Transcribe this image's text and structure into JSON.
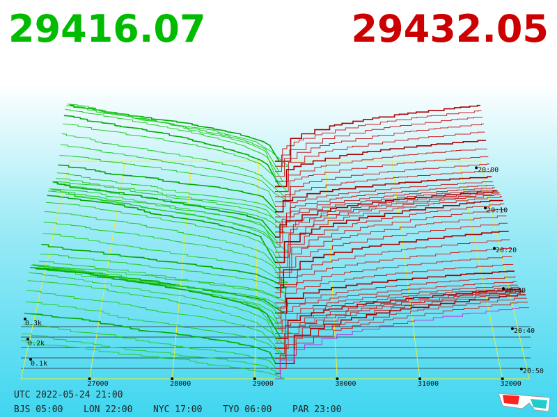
{
  "bid_price": "29416.07",
  "ask_price": "29432.05",
  "price_axis": [
    "27000",
    "28000",
    "29000",
    "30000",
    "31000",
    "32000"
  ],
  "time_axis": [
    "20:00",
    "20:10",
    "20:20",
    "20:30",
    "20:40",
    "20:50"
  ],
  "volume_axis": [
    "0.3k",
    "0.2k",
    "0.1k"
  ],
  "clock": {
    "utc": "UTC 2022-05-24 21:00",
    "cities": [
      "BJS 05:00",
      "LON 22:00",
      "NYC 17:00",
      "TYO 06:00",
      "PAR 23:00"
    ]
  }
}
